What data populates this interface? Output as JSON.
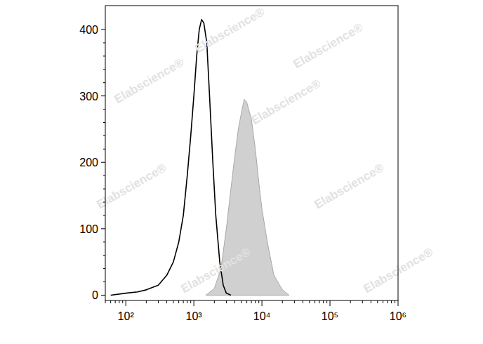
{
  "chart_data": {
    "type": "line",
    "log": "x",
    "watermark": "Elabscience®",
    "xlim": [
      50,
      1000000
    ],
    "xticks": [
      {
        "value": 100,
        "label": "10²"
      },
      {
        "value": 1000,
        "label": "10³"
      },
      {
        "value": 10000,
        "label": "10⁴"
      },
      {
        "value": 100000,
        "label": "10⁵"
      },
      {
        "value": 1000000,
        "label": "10⁶"
      }
    ],
    "ylim": [
      -8,
      436
    ],
    "yticks": [
      0,
      100,
      200,
      300,
      400
    ],
    "series": [
      {
        "type": "line",
        "color": "#000000",
        "x": [
          60,
          100,
          150,
          200,
          300,
          400,
          500,
          600,
          700,
          800,
          900,
          1000,
          1100,
          1200,
          1300,
          1400,
          1550,
          1700,
          1900,
          2100,
          2400,
          2700,
          3000,
          3500
        ],
        "values": [
          0,
          3,
          5,
          8,
          15,
          30,
          50,
          80,
          120,
          180,
          240,
          300,
          360,
          400,
          415,
          410,
          380,
          300,
          200,
          120,
          50,
          15,
          3,
          0
        ]
      },
      {
        "type": "area",
        "color": "#d0d0d0",
        "x": [
          1500,
          2000,
          2500,
          3000,
          3500,
          4000,
          4500,
          5000,
          5500,
          6000,
          7000,
          8000,
          9000,
          10000,
          12000,
          15000,
          20000,
          25000
        ],
        "values": [
          0,
          10,
          40,
          100,
          160,
          210,
          250,
          275,
          295,
          290,
          265,
          220,
          170,
          130,
          80,
          30,
          8,
          0
        ]
      }
    ]
  }
}
